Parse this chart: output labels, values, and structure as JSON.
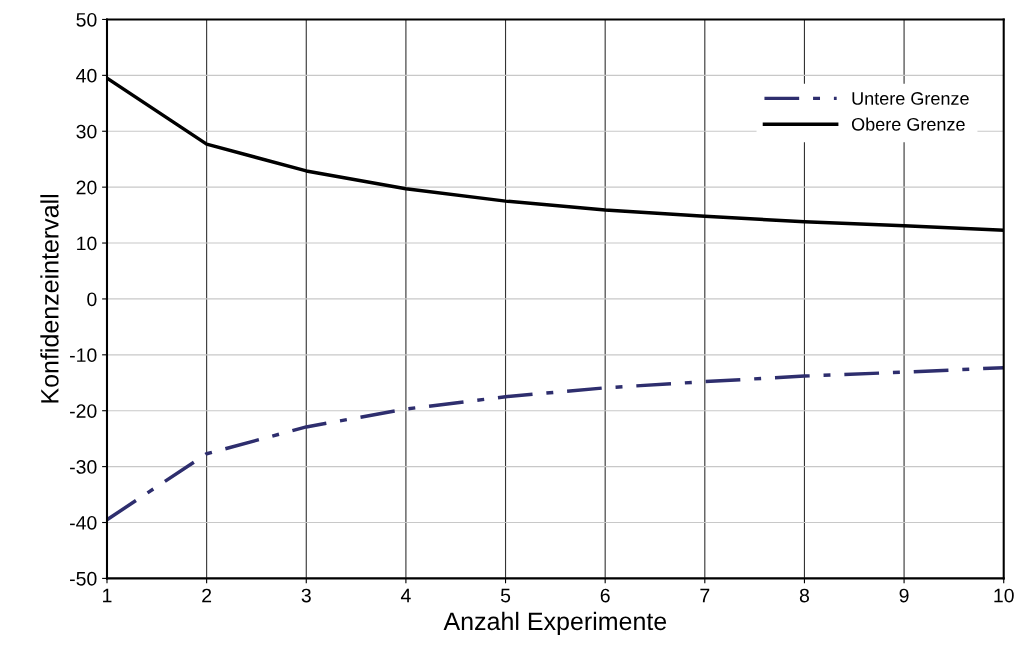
{
  "chart_data": {
    "type": "line",
    "xlabel": "Anzahl Experimente",
    "ylabel": "Konfidenzeintervall",
    "x": [
      1,
      2,
      3,
      4,
      5,
      6,
      7,
      8,
      9,
      10
    ],
    "series": [
      {
        "name": "Untere Grenze",
        "color": "#2e2e6e",
        "line_style": "dashed",
        "values": [
          -39.5,
          -27.7,
          -22.9,
          -19.7,
          -17.5,
          -15.9,
          -14.8,
          -13.8,
          -13.1,
          -12.3
        ]
      },
      {
        "name": "Obere Grenze",
        "color": "#000000",
        "line_style": "solid",
        "values": [
          39.5,
          27.7,
          22.9,
          19.7,
          17.5,
          15.9,
          14.8,
          13.8,
          13.1,
          12.3
        ]
      }
    ],
    "xlim": [
      1,
      10
    ],
    "xticks": [
      1,
      2,
      3,
      4,
      5,
      6,
      7,
      8,
      9,
      10
    ],
    "ylim": [
      -50,
      50
    ],
    "yticks": [
      -50,
      -40,
      -30,
      -20,
      -10,
      0,
      10,
      20,
      30,
      40,
      50
    ],
    "grid": true,
    "legend": "top right",
    "marker": "none"
  }
}
